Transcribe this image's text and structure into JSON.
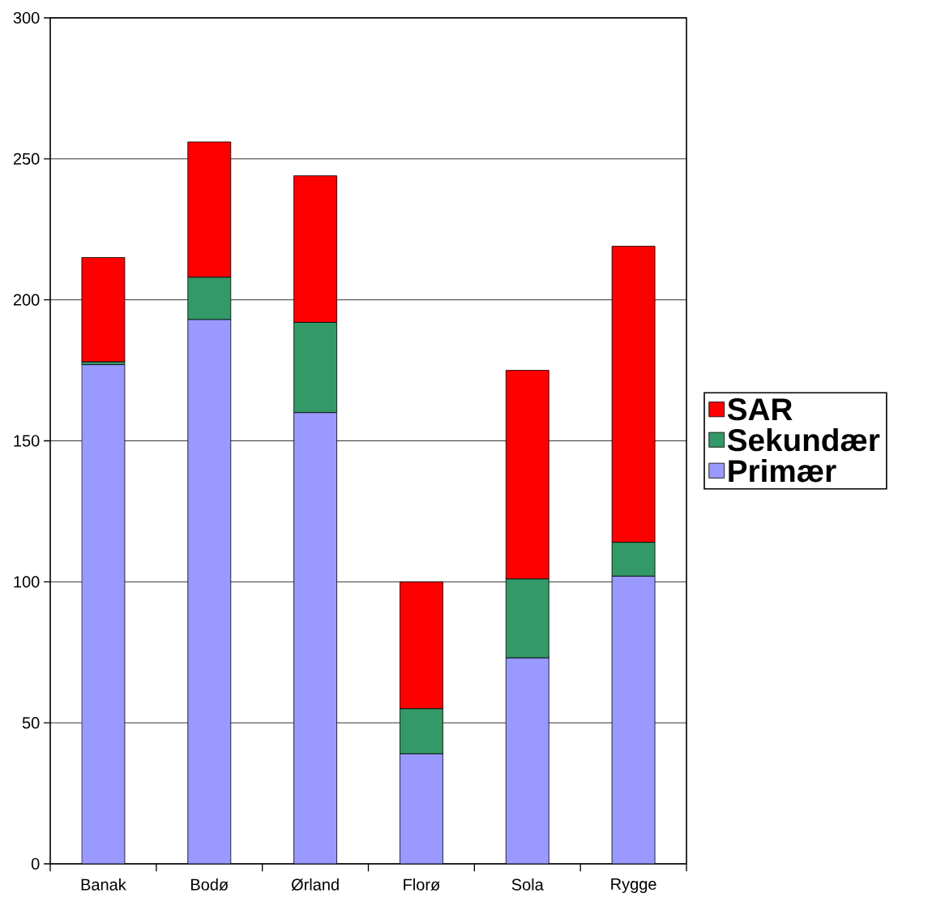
{
  "chart_data": {
    "type": "bar",
    "stacked": true,
    "categories": [
      "Banak",
      "Bodø",
      "Ørland",
      "Florø",
      "Sola",
      "Rygge"
    ],
    "series": [
      {
        "name": "Primær",
        "color": "#9999ff",
        "values": [
          177,
          193,
          160,
          39,
          73,
          102
        ]
      },
      {
        "name": "Sekundær",
        "color": "#339966",
        "values": [
          1,
          15,
          32,
          16,
          28,
          12
        ]
      },
      {
        "name": "SAR",
        "color": "#ff0000",
        "values": [
          37,
          48,
          52,
          45,
          74,
          105
        ]
      }
    ],
    "ylim": [
      0,
      300
    ],
    "yticks": [
      0,
      50,
      100,
      150,
      200,
      250,
      300
    ],
    "grid": "y",
    "legend": "right"
  }
}
